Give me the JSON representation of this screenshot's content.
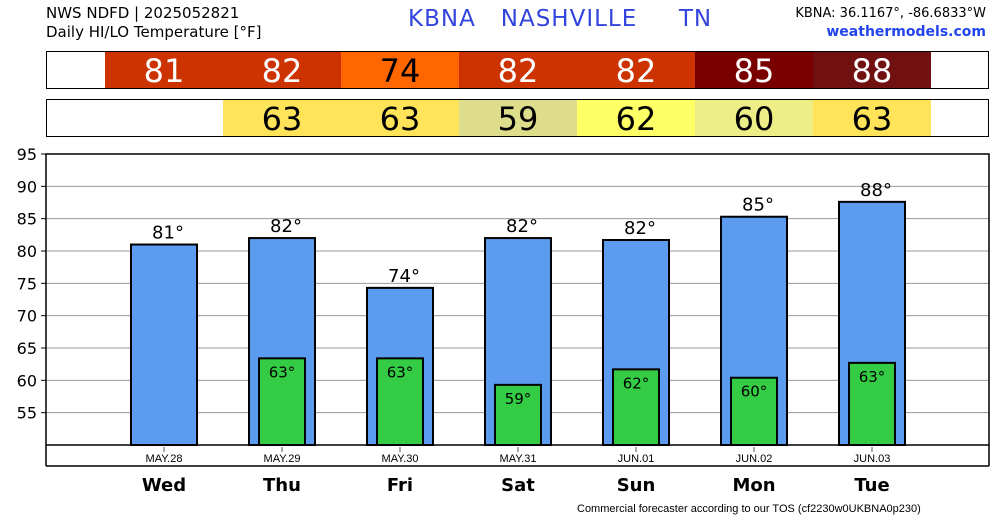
{
  "header": {
    "line1": "NWS NDFD | 2025052821",
    "line2": "Daily HI/LO Temperature [°F]",
    "station": "KBNA",
    "city": "NASHVILLE",
    "state": "TN",
    "coords": "KBNA: 36.1167°, -86.6833°W",
    "site": "weathermodels.com"
  },
  "footer": "Commercial forecaster according to our TOS (cf2230w0UKBNA0p230)",
  "hi_strip": [
    {
      "value": "81",
      "color": "#cc3300",
      "text_color": "#ffffff"
    },
    {
      "value": "82",
      "color": "#cc3300",
      "text_color": "#ffffff"
    },
    {
      "value": "74",
      "color": "#ff6600",
      "text_color": "#000000"
    },
    {
      "value": "82",
      "color": "#cc3300",
      "text_color": "#ffffff"
    },
    {
      "value": "82",
      "color": "#cc3300",
      "text_color": "#ffffff"
    },
    {
      "value": "85",
      "color": "#7a0000",
      "text_color": "#ffffff"
    },
    {
      "value": "88",
      "color": "#701010",
      "text_color": "#ffffff"
    }
  ],
  "lo_strip": [
    {
      "value": "",
      "color": "#ffffff",
      "text_color": "#000000"
    },
    {
      "value": "63",
      "color": "#ffe45a",
      "text_color": "#000000"
    },
    {
      "value": "63",
      "color": "#ffe45a",
      "text_color": "#000000"
    },
    {
      "value": "59",
      "color": "#dddd8c",
      "text_color": "#000000"
    },
    {
      "value": "62",
      "color": "#ffff66",
      "text_color": "#000000"
    },
    {
      "value": "60",
      "color": "#eeee88",
      "text_color": "#000000"
    },
    {
      "value": "63",
      "color": "#ffe45a",
      "text_color": "#000000"
    }
  ],
  "chart_data": {
    "type": "bar",
    "categories": [
      "MAY.28",
      "MAY.29",
      "MAY.30",
      "MAY.31",
      "JUN.01",
      "JUN.02",
      "JUN.03"
    ],
    "days": [
      "Wed",
      "Thu",
      "Fri",
      "Sat",
      "Sun",
      "Mon",
      "Tue"
    ],
    "series": [
      {
        "values": [
          81,
          82,
          74.3,
          82,
          81.7,
          85.3,
          87.6
        ],
        "labels": [
          "81°",
          "82°",
          "74°",
          "82°",
          "82°",
          "85°",
          "88°"
        ],
        "color": "#5b9cf0"
      },
      {
        "values": [
          null,
          63.4,
          63.4,
          59.3,
          61.7,
          60.4,
          62.7
        ],
        "labels": [
          "",
          "63°",
          "63°",
          "59°",
          "62°",
          "60°",
          "63°"
        ],
        "color": "#33cc44"
      }
    ],
    "ylim": [
      50,
      95
    ],
    "yticks": [
      "55",
      "60",
      "65",
      "70",
      "75",
      "80",
      "85",
      "90",
      "95"
    ],
    "grid": true
  }
}
